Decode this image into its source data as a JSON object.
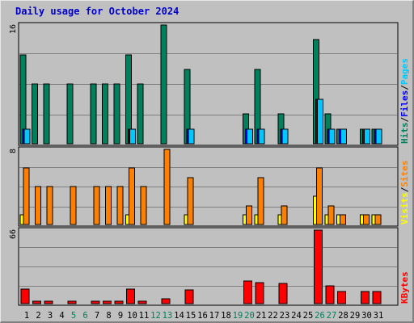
{
  "title": "Daily usage for October 2024",
  "colors": {
    "hits": "#00805c",
    "files": "#0000ff",
    "pages": "#00c8ff",
    "visits": "#ffff00",
    "sites": "#ff8000",
    "kbytes": "#ff0000",
    "weekend_label": "#00805c",
    "weekday_label": "#000000",
    "background": "#c0c0c0",
    "gridline": "#808080"
  },
  "chart_data": [
    {
      "type": "bar",
      "panel": "hits-files-pages",
      "ymax_label": "16",
      "ylim": [
        0,
        16
      ],
      "axis_label": [
        {
          "text": "Hits",
          "color": "#00805c"
        },
        {
          "text": "/",
          "color": "#000000"
        },
        {
          "text": "Files",
          "color": "#0000ff"
        },
        {
          "text": "/",
          "color": "#000000"
        },
        {
          "text": "Pages",
          "color": "#00c8ff"
        }
      ],
      "categories": [
        "1",
        "2",
        "3",
        "4",
        "5",
        "6",
        "7",
        "8",
        "9",
        "10",
        "11",
        "12",
        "13",
        "14",
        "15",
        "16",
        "17",
        "18",
        "19",
        "20",
        "21",
        "22",
        "23",
        "24",
        "25",
        "26",
        "27",
        "28",
        "29",
        "30",
        "31"
      ],
      "series": [
        {
          "name": "Hits",
          "color": "#00805c",
          "values": [
            12,
            8,
            8,
            0,
            8,
            0,
            8,
            8,
            8,
            12,
            8,
            0,
            16,
            0,
            10,
            0,
            0,
            0,
            0,
            4,
            10,
            0,
            4,
            0,
            0,
            14,
            4,
            2,
            0,
            2,
            2
          ]
        },
        {
          "name": "Files",
          "color": "#0000ff",
          "values": [
            2,
            0,
            0,
            0,
            0,
            0,
            0,
            0,
            0,
            2,
            0,
            0,
            0,
            0,
            2,
            0,
            0,
            0,
            0,
            2,
            2,
            0,
            2,
            0,
            0,
            6,
            2,
            2,
            0,
            2,
            2
          ]
        },
        {
          "name": "Pages",
          "color": "#00c8ff",
          "values": [
            2,
            0,
            0,
            0,
            0,
            0,
            0,
            0,
            0,
            2,
            0,
            0,
            0,
            0,
            2,
            0,
            0,
            0,
            0,
            2,
            2,
            0,
            2,
            0,
            0,
            6,
            2,
            2,
            0,
            2,
            2
          ]
        }
      ]
    },
    {
      "type": "bar",
      "panel": "visits-sites",
      "ymax_label": "8",
      "ylim": [
        0,
        8
      ],
      "axis_label": [
        {
          "text": "Visits",
          "color": "#ffff00"
        },
        {
          "text": "/",
          "color": "#000000"
        },
        {
          "text": "Sites",
          "color": "#ff8000"
        }
      ],
      "categories": [
        "1",
        "2",
        "3",
        "4",
        "5",
        "6",
        "7",
        "8",
        "9",
        "10",
        "11",
        "12",
        "13",
        "14",
        "15",
        "16",
        "17",
        "18",
        "19",
        "20",
        "21",
        "22",
        "23",
        "24",
        "25",
        "26",
        "27",
        "28",
        "29",
        "30",
        "31"
      ],
      "series": [
        {
          "name": "Visits",
          "color": "#ffff00",
          "values": [
            1,
            0,
            0,
            0,
            0,
            0,
            0,
            0,
            0,
            1,
            0,
            0,
            0,
            0,
            1,
            0,
            0,
            0,
            0,
            1,
            1,
            0,
            1,
            0,
            0,
            3,
            1,
            1,
            0,
            1,
            1
          ]
        },
        {
          "name": "Sites",
          "color": "#ff8000",
          "values": [
            6,
            4,
            4,
            0,
            4,
            0,
            4,
            4,
            4,
            6,
            4,
            0,
            8,
            0,
            5,
            0,
            0,
            0,
            0,
            2,
            5,
            0,
            2,
            0,
            0,
            6,
            2,
            1,
            0,
            1,
            1
          ]
        }
      ]
    },
    {
      "type": "bar",
      "panel": "kbytes",
      "ymax_label": "66",
      "ylim": [
        0,
        66
      ],
      "axis_label": [
        {
          "text": "KBytes",
          "color": "#ff0000"
        }
      ],
      "categories": [
        "1",
        "2",
        "3",
        "4",
        "5",
        "6",
        "7",
        "8",
        "9",
        "10",
        "11",
        "12",
        "13",
        "14",
        "15",
        "16",
        "17",
        "18",
        "19",
        "20",
        "21",
        "22",
        "23",
        "24",
        "25",
        "26",
        "27",
        "28",
        "29",
        "30",
        "31"
      ],
      "series": [
        {
          "name": "KBytes",
          "color": "#ff0000",
          "values": [
            13,
            2,
            2,
            0,
            2,
            0,
            2,
            2,
            2,
            13,
            2,
            0,
            4,
            0,
            12,
            0,
            0,
            0,
            0,
            20,
            19,
            0,
            18,
            0,
            0,
            66,
            16,
            11,
            0,
            11,
            11
          ]
        }
      ]
    }
  ],
  "x_labels": [
    {
      "text": "1",
      "weekend": false
    },
    {
      "text": "2",
      "weekend": false
    },
    {
      "text": "3",
      "weekend": false
    },
    {
      "text": "4",
      "weekend": false
    },
    {
      "text": "5",
      "weekend": true
    },
    {
      "text": "6",
      "weekend": true
    },
    {
      "text": "7",
      "weekend": false
    },
    {
      "text": "8",
      "weekend": false
    },
    {
      "text": "9",
      "weekend": false
    },
    {
      "text": "10",
      "weekend": false
    },
    {
      "text": "11",
      "weekend": false
    },
    {
      "text": "12",
      "weekend": true
    },
    {
      "text": "13",
      "weekend": true
    },
    {
      "text": "14",
      "weekend": false
    },
    {
      "text": "15",
      "weekend": false
    },
    {
      "text": "16",
      "weekend": false
    },
    {
      "text": "17",
      "weekend": false
    },
    {
      "text": "18",
      "weekend": false
    },
    {
      "text": "19",
      "weekend": true
    },
    {
      "text": "20",
      "weekend": true
    },
    {
      "text": "21",
      "weekend": false
    },
    {
      "text": "22",
      "weekend": false
    },
    {
      "text": "23",
      "weekend": false
    },
    {
      "text": "24",
      "weekend": false
    },
    {
      "text": "25",
      "weekend": false
    },
    {
      "text": "26",
      "weekend": true
    },
    {
      "text": "27",
      "weekend": true
    },
    {
      "text": "28",
      "weekend": false
    },
    {
      "text": "29",
      "weekend": false
    },
    {
      "text": "30",
      "weekend": false
    },
    {
      "text": "31",
      "weekend": false
    }
  ]
}
